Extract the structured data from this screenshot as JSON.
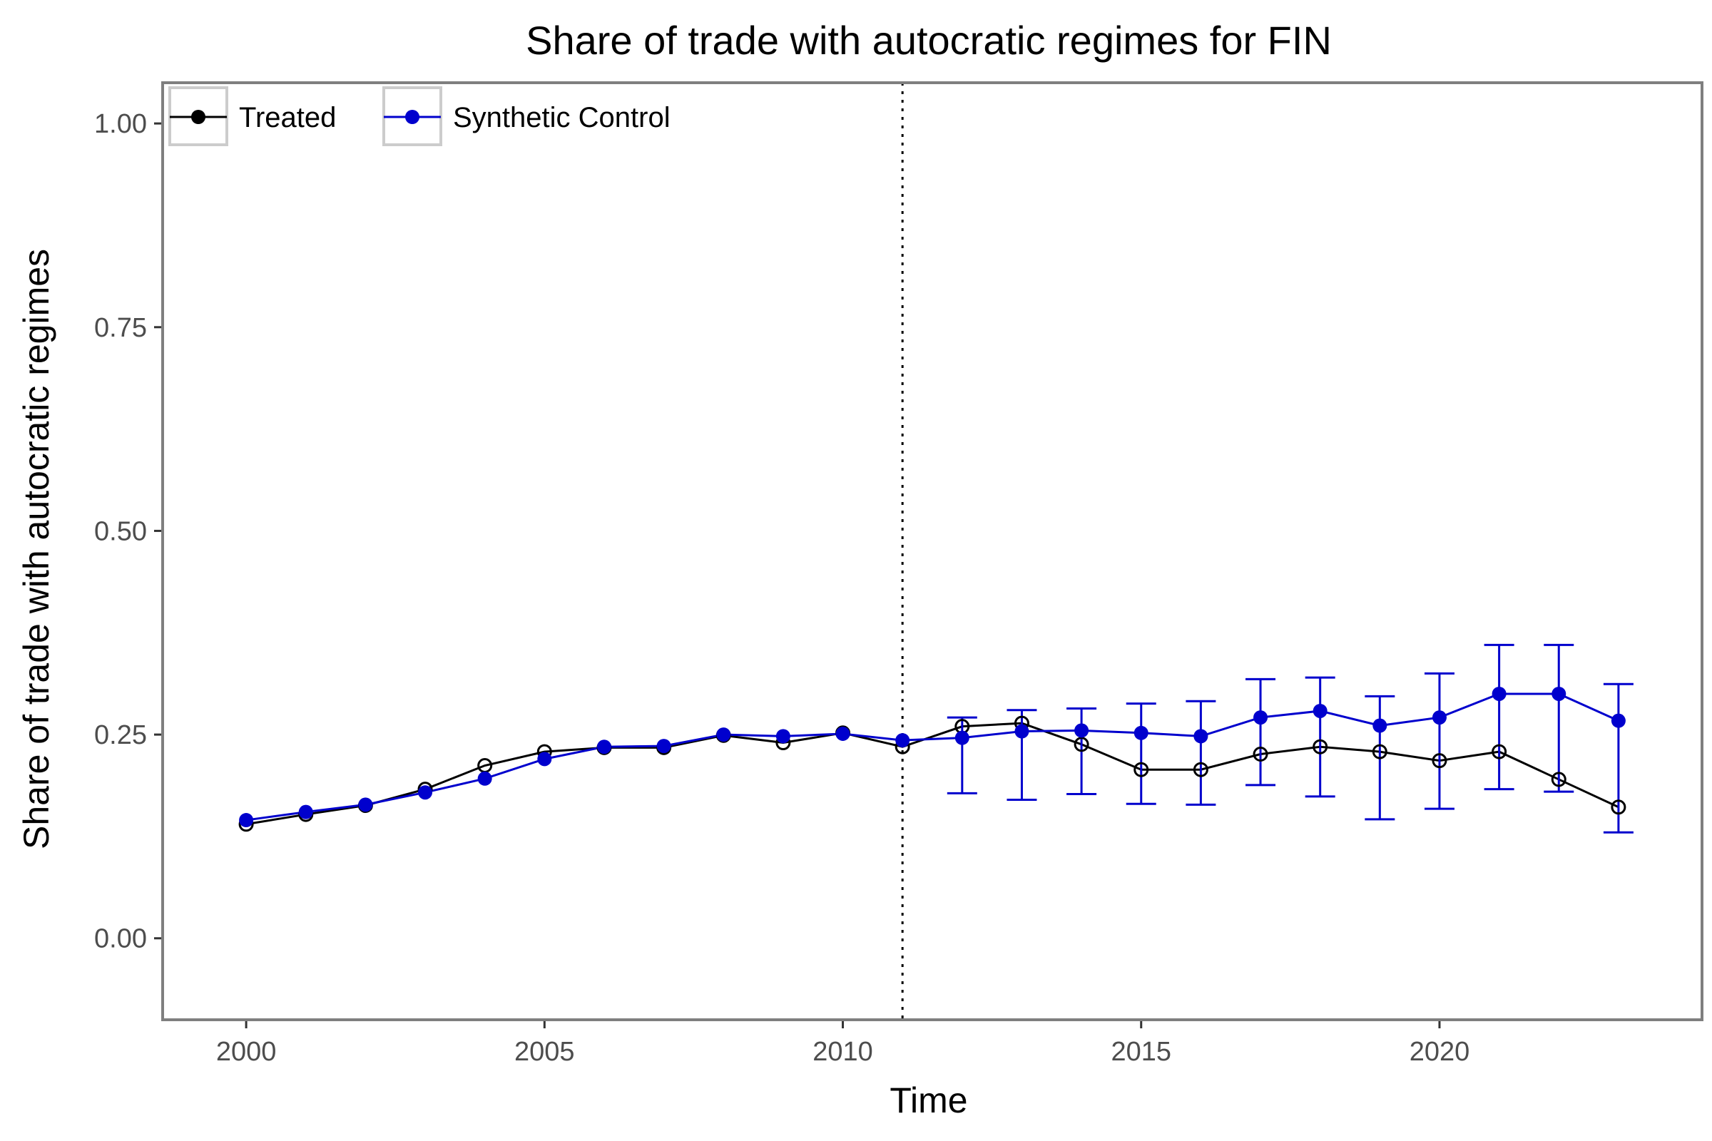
{
  "chart_data": {
    "type": "line",
    "title": "Share of trade with autocratic regimes for FIN",
    "xlabel": "Time",
    "ylabel": "Share of trade with autocratic regimes",
    "xlim": [
      1998.6,
      2024.4
    ],
    "ylim": [
      -0.1,
      1.05
    ],
    "x_ticks": [
      2000,
      2005,
      2010,
      2015,
      2020
    ],
    "x_tick_labels": [
      "2000",
      "2005",
      "2010",
      "2015",
      "2020"
    ],
    "y_ticks": [
      0.0,
      0.25,
      0.5,
      0.75,
      1.0
    ],
    "y_tick_labels": [
      "0.00",
      "0.25",
      "0.50",
      "0.75",
      "1.00"
    ],
    "grid": false,
    "legend_position": "top-left",
    "treatment_year": 2011,
    "x": [
      2000,
      2001,
      2002,
      2003,
      2004,
      2005,
      2006,
      2007,
      2008,
      2009,
      2010,
      2011,
      2012,
      2013,
      2014,
      2015,
      2016,
      2017,
      2018,
      2019,
      2020,
      2021,
      2022,
      2023
    ],
    "series": [
      {
        "name": "Treated",
        "color": "#000000",
        "marker": "open-circle",
        "values": [
          0.14,
          0.152,
          0.163,
          0.183,
          0.212,
          0.229,
          0.234,
          0.234,
          0.249,
          0.24,
          0.252,
          0.235,
          0.26,
          0.264,
          0.238,
          0.207,
          0.207,
          0.226,
          0.235,
          0.229,
          0.218,
          0.229,
          0.195,
          0.161
        ]
      },
      {
        "name": "Synthetic Control",
        "color": "#0000cd",
        "marker": "filled-circle",
        "values": [
          0.145,
          0.155,
          0.164,
          0.179,
          0.196,
          0.22,
          0.235,
          0.236,
          0.25,
          0.248,
          0.251,
          0.243,
          0.246,
          0.254,
          0.255,
          0.252,
          0.248,
          0.271,
          0.279,
          0.261,
          0.271,
          0.3,
          0.3,
          0.267
        ],
        "error_bars": {
          "x": [
            2012,
            2013,
            2014,
            2015,
            2016,
            2017,
            2018,
            2019,
            2020,
            2021,
            2022,
            2023
          ],
          "lower": [
            0.178,
            0.17,
            0.177,
            0.165,
            0.164,
            0.188,
            0.174,
            0.146,
            0.159,
            0.183,
            0.18,
            0.13
          ],
          "upper": [
            0.271,
            0.28,
            0.282,
            0.288,
            0.291,
            0.318,
            0.32,
            0.297,
            0.325,
            0.36,
            0.36,
            0.312
          ]
        }
      }
    ]
  }
}
